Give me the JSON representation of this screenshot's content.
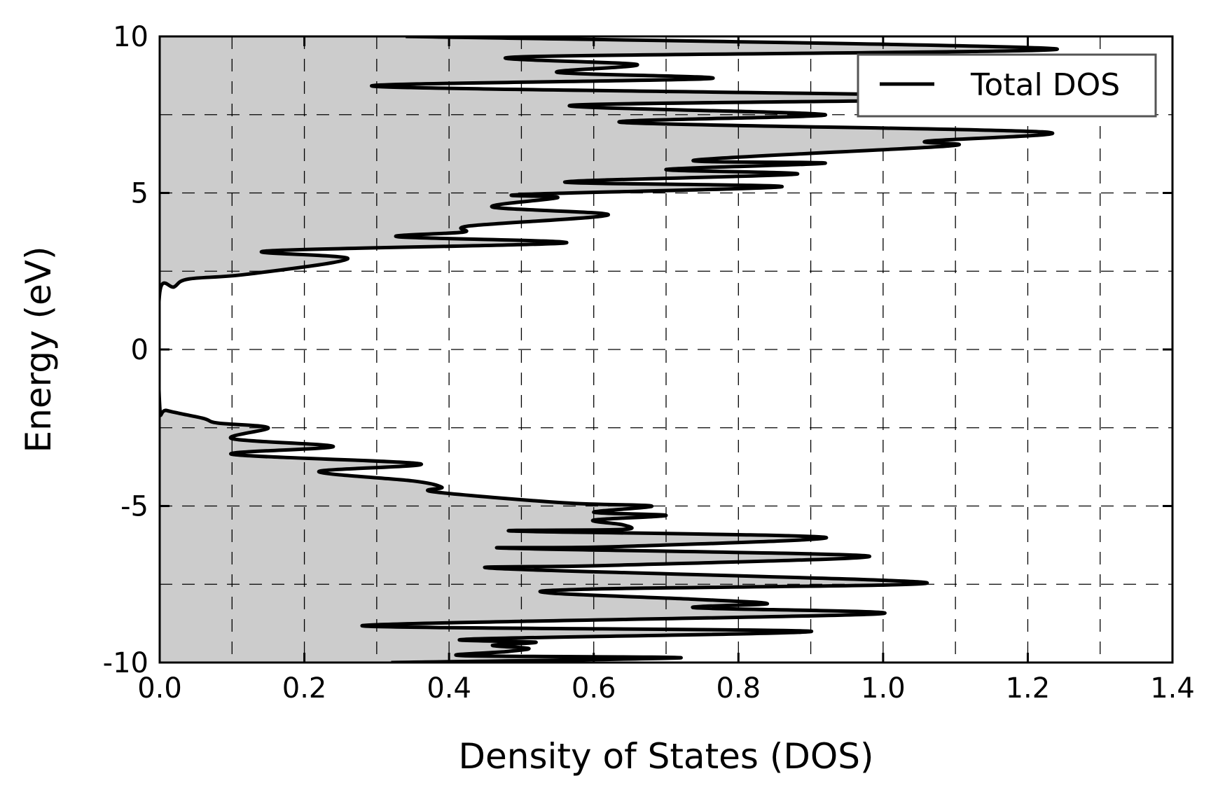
{
  "chart_data": {
    "type": "area",
    "orientation": "horizontal",
    "xlabel": "Density of States (DOS)",
    "ylabel": "Energy (eV)",
    "xlim": [
      0.0,
      1.4
    ],
    "ylim": [
      -10,
      10
    ],
    "xticks": [
      "0.0",
      "0.2",
      "0.4",
      "0.6",
      "0.8",
      "1.0",
      "1.2",
      "1.4"
    ],
    "yticks": [
      "-10",
      "-5",
      "0",
      "5",
      "10"
    ],
    "grid": true,
    "legend_position": "top-right",
    "fill_color": "#cccccc",
    "line_color": "#000000",
    "series": [
      {
        "name": "Total DOS",
        "points": [
          [
            0.32,
            -10.0
          ],
          [
            0.72,
            -9.85
          ],
          [
            0.42,
            -9.78
          ],
          [
            0.48,
            -9.65
          ],
          [
            0.51,
            -9.55
          ],
          [
            0.46,
            -9.45
          ],
          [
            0.52,
            -9.35
          ],
          [
            0.43,
            -9.25
          ],
          [
            0.9,
            -9.0
          ],
          [
            0.28,
            -8.82
          ],
          [
            0.99,
            -8.45
          ],
          [
            0.74,
            -8.25
          ],
          [
            0.84,
            -8.12
          ],
          [
            0.74,
            -7.98
          ],
          [
            0.54,
            -7.78
          ],
          [
            0.6,
            -7.65
          ],
          [
            1.06,
            -7.45
          ],
          [
            0.47,
            -7.0
          ],
          [
            0.62,
            -6.9
          ],
          [
            0.98,
            -6.6
          ],
          [
            0.48,
            -6.35
          ],
          [
            0.63,
            -6.3
          ],
          [
            0.92,
            -6.0
          ],
          [
            0.49,
            -5.8
          ],
          [
            0.64,
            -5.75
          ],
          [
            0.64,
            -5.6
          ],
          [
            0.6,
            -5.45
          ],
          [
            0.7,
            -5.3
          ],
          [
            0.6,
            -5.2
          ],
          [
            0.68,
            -5.0
          ],
          [
            0.56,
            -4.9
          ],
          [
            0.38,
            -4.55
          ],
          [
            0.39,
            -4.4
          ],
          [
            0.35,
            -4.2
          ],
          [
            0.22,
            -3.9
          ],
          [
            0.36,
            -3.65
          ],
          [
            0.1,
            -3.35
          ],
          [
            0.24,
            -3.1
          ],
          [
            0.1,
            -2.85
          ],
          [
            0.15,
            -2.5
          ],
          [
            0.08,
            -2.35
          ],
          [
            0.06,
            -2.2
          ],
          [
            0.01,
            -1.95
          ],
          [
            0.0,
            -1.8
          ],
          [
            0.0,
            1.8
          ],
          [
            0.02,
            2.0
          ],
          [
            0.04,
            2.25
          ],
          [
            0.12,
            2.4
          ],
          [
            0.26,
            2.9
          ],
          [
            0.15,
            3.15
          ],
          [
            0.56,
            3.4
          ],
          [
            0.33,
            3.6
          ],
          [
            0.42,
            3.75
          ],
          [
            0.43,
            3.95
          ],
          [
            0.62,
            4.3
          ],
          [
            0.46,
            4.55
          ],
          [
            0.55,
            4.85
          ],
          [
            0.5,
            4.95
          ],
          [
            0.86,
            5.2
          ],
          [
            0.56,
            5.35
          ],
          [
            0.88,
            5.6
          ],
          [
            0.7,
            5.75
          ],
          [
            0.92,
            5.95
          ],
          [
            0.74,
            6.05
          ],
          [
            1.09,
            6.5
          ],
          [
            1.06,
            6.65
          ],
          [
            1.22,
            6.95
          ],
          [
            0.64,
            7.25
          ],
          [
            0.92,
            7.5
          ],
          [
            0.57,
            7.8
          ],
          [
            1.19,
            8.05
          ],
          [
            0.3,
            8.4
          ],
          [
            0.76,
            8.65
          ],
          [
            0.55,
            8.85
          ],
          [
            0.66,
            9.1
          ],
          [
            0.5,
            9.35
          ],
          [
            1.24,
            9.6
          ],
          [
            0.34,
            10.0
          ]
        ]
      }
    ]
  }
}
